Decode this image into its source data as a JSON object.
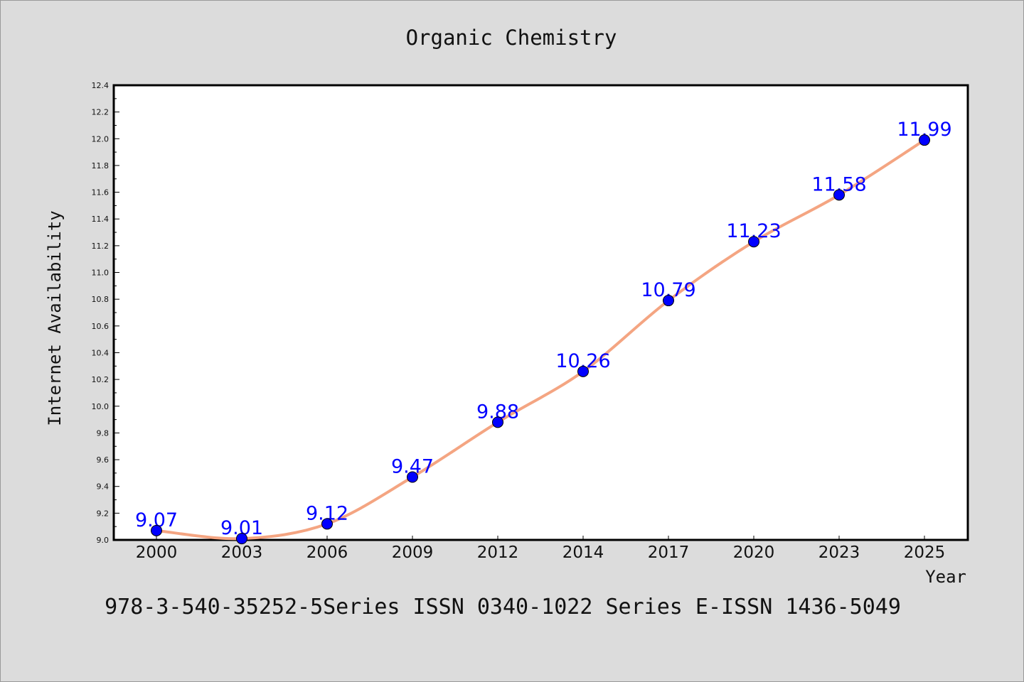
{
  "chart_data": {
    "type": "line",
    "title": "Organic Chemistry",
    "xlabel": "Year",
    "ylabel": "Internet Availability",
    "categories": [
      "2000",
      "2003",
      "2006",
      "2009",
      "2012",
      "2014",
      "2017",
      "2020",
      "2023",
      "2025"
    ],
    "series": [
      {
        "values": [
          9.07,
          9.01,
          9.12,
          9.47,
          9.88,
          10.26,
          10.79,
          11.23,
          11.58,
          11.99
        ],
        "line_color": "#f4a582",
        "marker_color": "#0000ff"
      }
    ],
    "data_labels": [
      "9.07",
      "9.01",
      "9.12",
      "9.47",
      "9.88",
      "10.26",
      "10.79",
      "11.23",
      "11.58",
      "11.99"
    ],
    "ylim": [
      9.0,
      12.4
    ],
    "yticks": [
      "9.0",
      "9.2",
      "9.4",
      "9.6",
      "9.8",
      "10.0",
      "10.2",
      "10.4",
      "10.6",
      "10.8",
      "11.0",
      "11.2",
      "11.4",
      "11.6",
      "11.8",
      "12.0",
      "12.2",
      "12.4"
    ],
    "grid": false,
    "legend": "none"
  },
  "footer_text": "978-3-540-35252-5Series ISSN 0340-1022 Series E-ISSN 1436-5049"
}
